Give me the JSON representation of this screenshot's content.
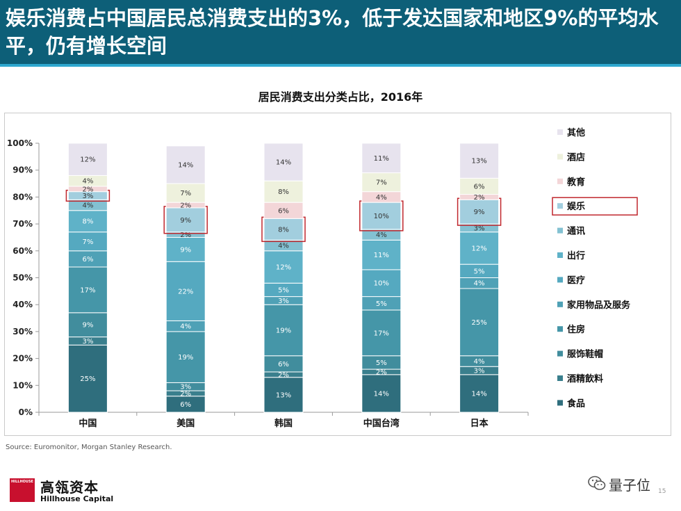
{
  "slide": {
    "title": "娱乐消费占中国居民总消费支出的3%，低于发达国家和地区9%的平均水平，仍有增长空间",
    "source": "Source: Euromonitor, Morgan Stanley Research.",
    "logo_mark_text": "HILLHOUSE",
    "logo_cn": "高瓴资本",
    "logo_en": "Hillhouse Capital",
    "watermark": "量子位",
    "page_number": "15"
  },
  "colors": {
    "banner": "#0d5f78",
    "highlight": "#c0272d"
  },
  "chart_data": {
    "type": "bar",
    "stacked": true,
    "percent": true,
    "title": "居民消费支出分类占比，2016年",
    "xlabel": "",
    "ylabel": "",
    "ylim": [
      0,
      100
    ],
    "yticks": [
      "0%",
      "10%",
      "20%",
      "30%",
      "40%",
      "50%",
      "60%",
      "70%",
      "80%",
      "90%",
      "100%"
    ],
    "categories": [
      "中国",
      "美国",
      "韩国",
      "中国台湾",
      "日本"
    ],
    "highlight_series": "娱乐",
    "legend_position": "right",
    "series": [
      {
        "name": "食品",
        "color": "#2f6e7d",
        "values": [
          25,
          6,
          13,
          14,
          14
        ]
      },
      {
        "name": "酒精飲料",
        "color": "#3a7f8d",
        "values": [
          3,
          2,
          2,
          2,
          3
        ]
      },
      {
        "name": "服饰鞋帽",
        "color": "#418d9d",
        "values": [
          9,
          3,
          6,
          5,
          4
        ]
      },
      {
        "name": "住房",
        "color": "#4596a8",
        "values": [
          17,
          19,
          19,
          17,
          25
        ]
      },
      {
        "name": "家用物品及服务",
        "color": "#4fa1b6",
        "values": [
          6,
          4,
          3,
          5,
          4
        ]
      },
      {
        "name": "医疗",
        "color": "#55a9c0",
        "values": [
          7,
          22,
          5,
          10,
          5
        ]
      },
      {
        "name": "出行",
        "color": "#5fb2c8",
        "values": [
          8,
          9,
          12,
          11,
          12
        ]
      },
      {
        "name": "通讯",
        "color": "#83c1d2",
        "values": [
          4,
          2,
          4,
          4,
          3
        ]
      },
      {
        "name": "娱乐",
        "color": "#a2cede",
        "values": [
          3,
          9,
          8,
          10,
          9
        ]
      },
      {
        "name": "教育",
        "color": "#f3d6d8",
        "values": [
          2,
          2,
          6,
          4,
          2
        ]
      },
      {
        "name": "酒店",
        "color": "#eef1dd",
        "values": [
          4,
          7,
          8,
          7,
          6
        ]
      },
      {
        "name": "其他",
        "color": "#e7e3ee",
        "values": [
          12,
          14,
          14,
          11,
          13
        ]
      }
    ]
  }
}
